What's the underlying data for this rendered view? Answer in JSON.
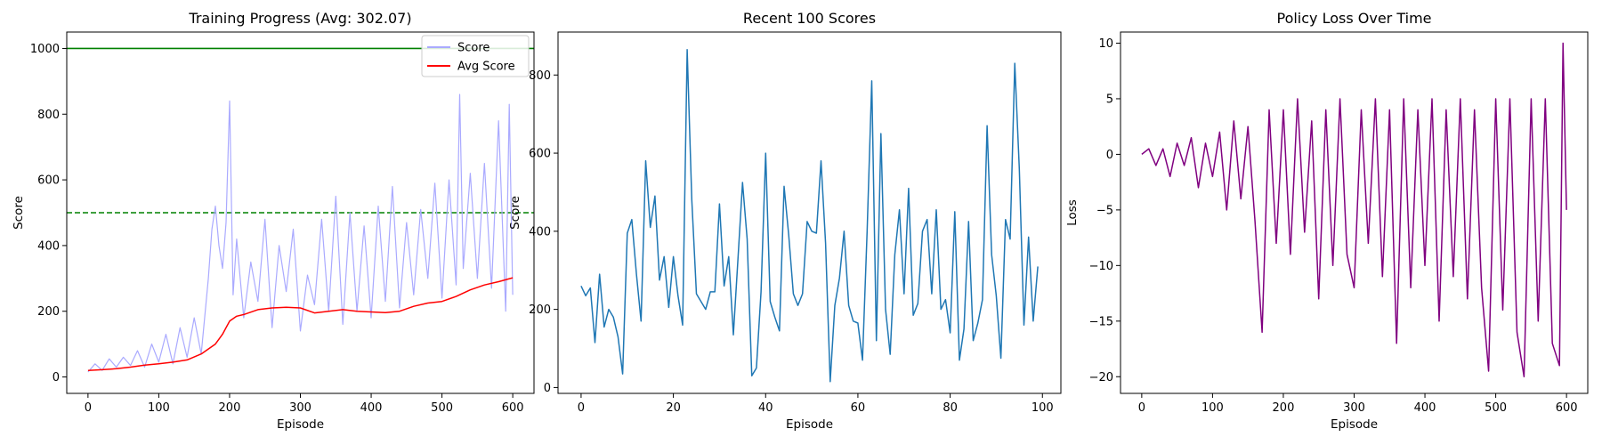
{
  "chart_data": [
    {
      "type": "line",
      "title": "Training Progress (Avg: 302.07)",
      "xlabel": "Episode",
      "ylabel": "Score",
      "xlim": [
        -30,
        630
      ],
      "ylim": [
        -50,
        1050
      ],
      "xticks": [
        0,
        100,
        200,
        300,
        400,
        500,
        600
      ],
      "yticks": [
        0,
        200,
        400,
        600,
        800,
        1000
      ],
      "hlines": [
        {
          "y": 1000,
          "color": "#008000",
          "style": "solid"
        },
        {
          "y": 500,
          "color": "#008000",
          "style": "dashed"
        }
      ],
      "legend": {
        "placement": "top-right",
        "entries": [
          "Score",
          "Avg Score"
        ]
      },
      "series": [
        {
          "name": "Score",
          "color": "#aaaaff",
          "x": [
            0,
            10,
            20,
            30,
            40,
            50,
            60,
            70,
            80,
            90,
            100,
            110,
            120,
            130,
            140,
            150,
            160,
            170,
            175,
            180,
            185,
            190,
            195,
            200,
            205,
            210,
            220,
            230,
            240,
            250,
            260,
            270,
            280,
            290,
            300,
            310,
            320,
            330,
            340,
            350,
            360,
            370,
            380,
            390,
            400,
            410,
            420,
            430,
            440,
            450,
            460,
            470,
            480,
            490,
            500,
            510,
            520,
            525,
            530,
            540,
            550,
            560,
            570,
            580,
            590,
            595,
            600
          ],
          "values": [
            15,
            40,
            20,
            55,
            30,
            60,
            35,
            80,
            30,
            100,
            45,
            130,
            40,
            150,
            60,
            180,
            70,
            300,
            450,
            520,
            400,
            330,
            470,
            840,
            250,
            420,
            180,
            350,
            230,
            480,
            150,
            400,
            260,
            450,
            140,
            310,
            220,
            480,
            200,
            550,
            160,
            500,
            200,
            460,
            180,
            520,
            230,
            580,
            210,
            470,
            250,
            510,
            300,
            590,
            240,
            600,
            280,
            860,
            330,
            620,
            300,
            650,
            270,
            780,
            200,
            830,
            250
          ]
        },
        {
          "name": "Avg Score",
          "color": "#ff0000",
          "x": [
            0,
            20,
            40,
            60,
            80,
            100,
            120,
            140,
            160,
            180,
            190,
            200,
            210,
            220,
            240,
            260,
            280,
            300,
            320,
            340,
            360,
            380,
            400,
            420,
            440,
            460,
            480,
            500,
            520,
            540,
            560,
            580,
            600
          ],
          "values": [
            20,
            22,
            25,
            30,
            36,
            40,
            45,
            52,
            70,
            100,
            130,
            170,
            185,
            190,
            205,
            210,
            212,
            210,
            195,
            200,
            205,
            200,
            198,
            196,
            200,
            215,
            225,
            230,
            245,
            265,
            280,
            290,
            302
          ]
        }
      ]
    },
    {
      "type": "line",
      "title": "Recent 100 Scores",
      "xlabel": "Episode",
      "ylabel": "Score",
      "xlim": [
        -5,
        104
      ],
      "ylim": [
        -15,
        910
      ],
      "xticks": [
        0,
        20,
        40,
        60,
        80,
        100
      ],
      "yticks": [
        0,
        200,
        400,
        600,
        800
      ],
      "series": [
        {
          "color": "#1f77b4",
          "x": [
            0,
            1,
            2,
            3,
            4,
            5,
            6,
            7,
            8,
            9,
            10,
            11,
            12,
            13,
            14,
            15,
            16,
            17,
            18,
            19,
            20,
            21,
            22,
            23,
            24,
            25,
            26,
            27,
            28,
            29,
            30,
            31,
            32,
            33,
            34,
            35,
            36,
            37,
            38,
            39,
            40,
            41,
            42,
            43,
            44,
            45,
            46,
            47,
            48,
            49,
            50,
            51,
            52,
            53,
            54,
            55,
            56,
            57,
            58,
            59,
            60,
            61,
            62,
            63,
            64,
            65,
            66,
            67,
            68,
            69,
            70,
            71,
            72,
            73,
            74,
            75,
            76,
            77,
            78,
            79,
            80,
            81,
            82,
            83,
            84,
            85,
            86,
            87,
            88,
            89,
            90,
            91,
            92,
            93,
            94,
            95,
            96,
            97,
            98,
            99
          ],
          "values": [
            260,
            235,
            255,
            115,
            290,
            155,
            200,
            180,
            130,
            35,
            395,
            430,
            290,
            170,
            580,
            410,
            490,
            275,
            335,
            205,
            335,
            235,
            160,
            865,
            480,
            240,
            220,
            200,
            245,
            245,
            470,
            260,
            335,
            135,
            330,
            525,
            380,
            30,
            50,
            245,
            600,
            220,
            180,
            145,
            515,
            390,
            240,
            210,
            240,
            425,
            400,
            395,
            580,
            370,
            15,
            210,
            280,
            400,
            210,
            170,
            165,
            70,
            400,
            785,
            120,
            650,
            200,
            85,
            340,
            455,
            240,
            510,
            185,
            215,
            400,
            430,
            240,
            455,
            200,
            225,
            140,
            450,
            70,
            150,
            425,
            120,
            165,
            225,
            670,
            340,
            235,
            75,
            430,
            380,
            830,
            560,
            160,
            385,
            170,
            310
          ]
        }
      ]
    },
    {
      "type": "line",
      "title": "Policy Loss Over Time",
      "xlabel": "Episode",
      "ylabel": "Loss",
      "xlim": [
        -30,
        630
      ],
      "ylim": [
        -21.5,
        11
      ],
      "xticks": [
        0,
        100,
        200,
        300,
        400,
        500,
        600
      ],
      "yticks": [
        10,
        5,
        0,
        -5,
        -10,
        -15,
        -20
      ],
      "series": [
        {
          "color": "#800080",
          "x": [
            0,
            10,
            20,
            30,
            40,
            50,
            60,
            70,
            80,
            90,
            100,
            110,
            120,
            130,
            140,
            150,
            160,
            170,
            180,
            190,
            200,
            210,
            220,
            230,
            240,
            250,
            260,
            270,
            280,
            290,
            300,
            310,
            320,
            330,
            340,
            350,
            360,
            370,
            380,
            390,
            400,
            410,
            420,
            430,
            440,
            450,
            460,
            470,
            480,
            490,
            500,
            510,
            520,
            530,
            540,
            550,
            560,
            570,
            580,
            590,
            595,
            600
          ],
          "values": [
            0,
            0.5,
            -1,
            0.5,
            -2,
            1,
            -1,
            1.5,
            -3,
            1,
            -2,
            2,
            -5,
            3,
            -4,
            2.5,
            -6,
            -16,
            4,
            -8,
            4,
            -9,
            5,
            -7,
            3,
            -13,
            4,
            -10,
            5,
            -9,
            -12,
            4,
            -8,
            5,
            -11,
            4,
            -17,
            5,
            -12,
            4,
            -10,
            5,
            -15,
            4,
            -11,
            5,
            -13,
            4,
            -12,
            -19.5,
            5,
            -14,
            5,
            -16,
            -20,
            5,
            -15,
            5,
            -17,
            -19,
            10,
            -5
          ]
        }
      ]
    }
  ]
}
